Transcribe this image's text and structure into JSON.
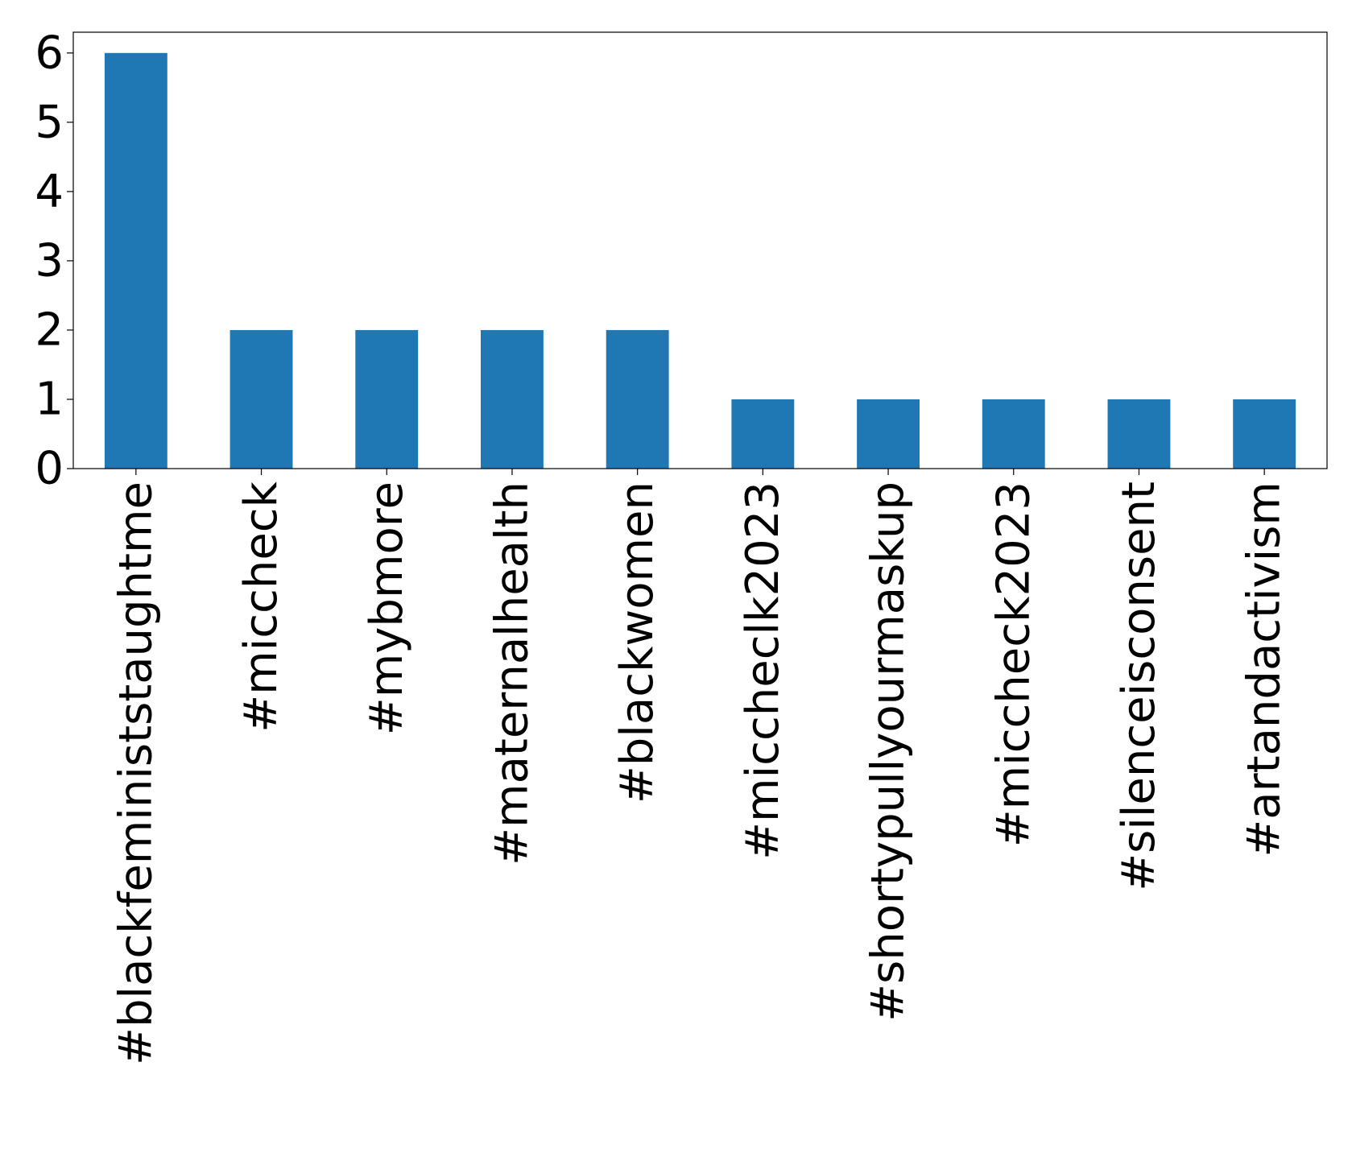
{
  "chart_data": {
    "type": "bar",
    "categories": [
      "#blackfeministstaughtme",
      "#miccheck",
      "#mybmore",
      "#maternalhealth",
      "#blackwomen",
      "#miccheclk2023",
      "#shortypullyourmaskup",
      "#miccheck2023",
      "#silenceisconsent",
      "#artandactivism"
    ],
    "values": [
      6,
      2,
      2,
      2,
      2,
      1,
      1,
      1,
      1,
      1
    ],
    "ylim": [
      0,
      6.3
    ],
    "yticks": [
      0,
      1,
      2,
      3,
      4,
      5,
      6
    ],
    "grid": false,
    "legend": false,
    "title": "",
    "xlabel": "",
    "ylabel": "",
    "bar_color": "#1f77b4"
  }
}
